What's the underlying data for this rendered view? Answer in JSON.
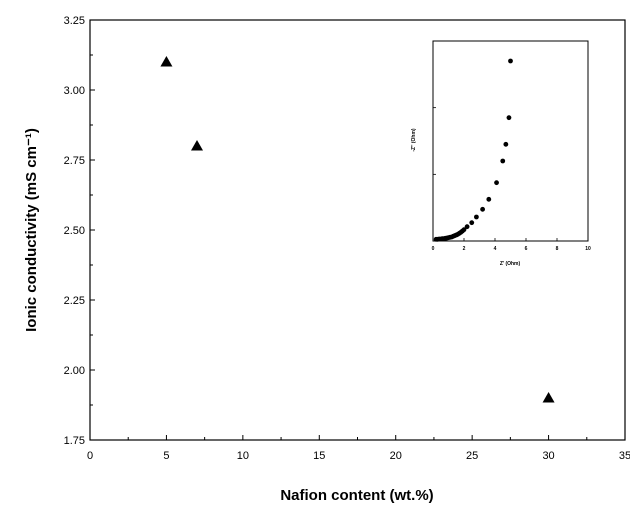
{
  "chart_data": [
    {
      "type": "scatter",
      "xlabel": "Nafion content (wt.%)",
      "ylabel": "Ionic conductivity (mS cm⁻¹)",
      "xlim": [
        0,
        35
      ],
      "ylim": [
        1.75,
        3.25
      ],
      "x_ticks": [
        0,
        5,
        10,
        15,
        20,
        25,
        30,
        35
      ],
      "y_ticks": [
        1.75,
        2.0,
        2.25,
        2.5,
        2.75,
        3.0,
        3.25
      ],
      "x_tick_labels": [
        "0",
        "5",
        "10",
        "15",
        "20",
        "25",
        "30",
        "35"
      ],
      "y_tick_labels": [
        "1.75",
        "2.00",
        "2.25",
        "2.50",
        "2.75",
        "3.00",
        "3.25"
      ],
      "marker": "triangle",
      "color": "#000000",
      "series": [
        {
          "x": [
            5,
            7,
            30
          ],
          "y": [
            3.1,
            2.8,
            1.9
          ]
        }
      ]
    },
    {
      "type": "scatter",
      "xlabel": "Z' (Ohm)",
      "ylabel": "-Z'' (Ohm)",
      "xlim": [
        0,
        10
      ],
      "ylim": [
        0,
        6
      ],
      "x_ticks": [
        0,
        2,
        4,
        6,
        8,
        10
      ],
      "marker": "circle",
      "color": "#000000",
      "series": [
        {
          "x": [
            0.2,
            0.3,
            0.4,
            0.5,
            0.6,
            0.7,
            0.8,
            0.9,
            1.0,
            1.1,
            1.2,
            1.3,
            1.4,
            1.5,
            1.6,
            1.7,
            1.8,
            1.9,
            2.0,
            2.2,
            2.5,
            2.8,
            3.2,
            3.6,
            4.1,
            4.5,
            4.7,
            4.9,
            5.0
          ],
          "y": [
            0.05,
            0.05,
            0.06,
            0.06,
            0.07,
            0.07,
            0.08,
            0.09,
            0.1,
            0.11,
            0.12,
            0.14,
            0.16,
            0.18,
            0.2,
            0.23,
            0.26,
            0.3,
            0.34,
            0.43,
            0.55,
            0.72,
            0.95,
            1.25,
            1.75,
            2.4,
            2.9,
            3.7,
            5.4
          ]
        }
      ]
    }
  ]
}
